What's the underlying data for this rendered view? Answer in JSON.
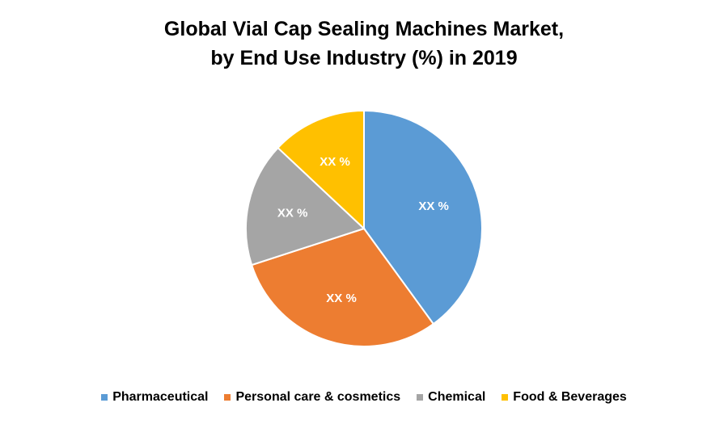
{
  "chart_data": {
    "type": "pie",
    "title": "Global Vial Cap Sealing Machines Market,",
    "subtitle": "by End Use Industry (%) in 2019",
    "categories": [
      "Pharmaceutical",
      "Personal care & cosmetics",
      "Chemical",
      "Food & Beverages"
    ],
    "values": [
      40,
      30,
      17,
      13
    ],
    "data_labels": [
      "XX %",
      "XX %",
      "XX %",
      "XX %"
    ],
    "colors": [
      "#5B9BD5",
      "#ED7D31",
      "#A5A5A5",
      "#FFC000"
    ],
    "legend_position": "bottom"
  }
}
